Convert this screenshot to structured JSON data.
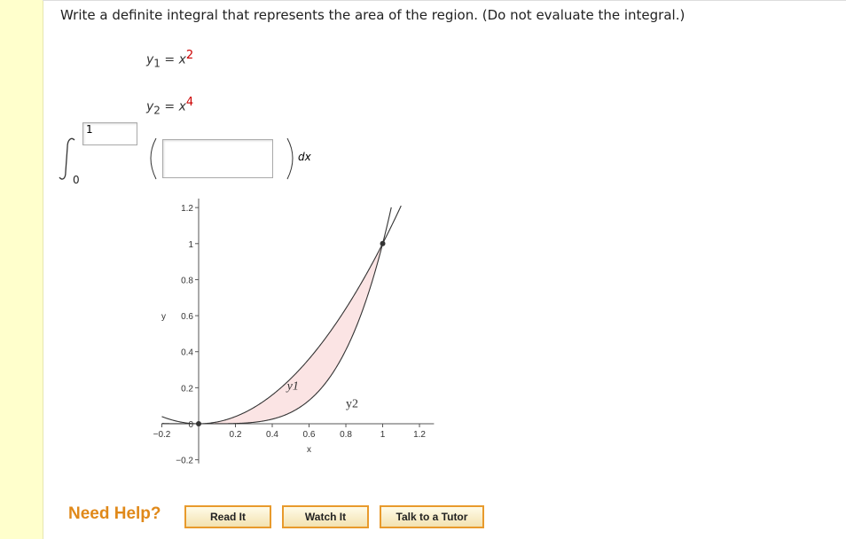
{
  "question": "Write a definite integral that represents the area of the region. (Do not evaluate the integral.)",
  "equations": [
    {
      "lhs": "y",
      "sub": "1",
      "eq": "=",
      "rhs": "x",
      "exp": 2
    },
    {
      "lhs": "y",
      "sub": "2",
      "eq": "=",
      "rhs": "x",
      "exp": 4
    }
  ],
  "integral": {
    "upper": "1",
    "lower": "0",
    "differential": "dx"
  },
  "chart": {
    "xlabel": "x",
    "ylabel": "y",
    "xlim": [
      -0.2,
      1.25
    ],
    "ylim": [
      -0.22,
      1.25
    ],
    "xticks": [
      {
        "value": -0.2,
        "label": "−0.2"
      },
      0.2,
      0.4,
      0.6,
      0.8,
      1,
      1.2
    ],
    "yticks": [
      {
        "value": -0.2,
        "label": "−0.2"
      },
      0,
      0.2,
      0.4,
      0.6,
      0.8,
      1,
      1.2
    ],
    "curve_labels": [
      "y1",
      "y2"
    ],
    "points": {
      "x": [
        0,
        1
      ],
      "y": [
        0,
        1
      ]
    },
    "shade_color": "#fbe4e4"
  },
  "help": {
    "title": "Need Help?",
    "buttons": [
      "Read It",
      "Watch It",
      "Talk to a Tutor"
    ]
  }
}
